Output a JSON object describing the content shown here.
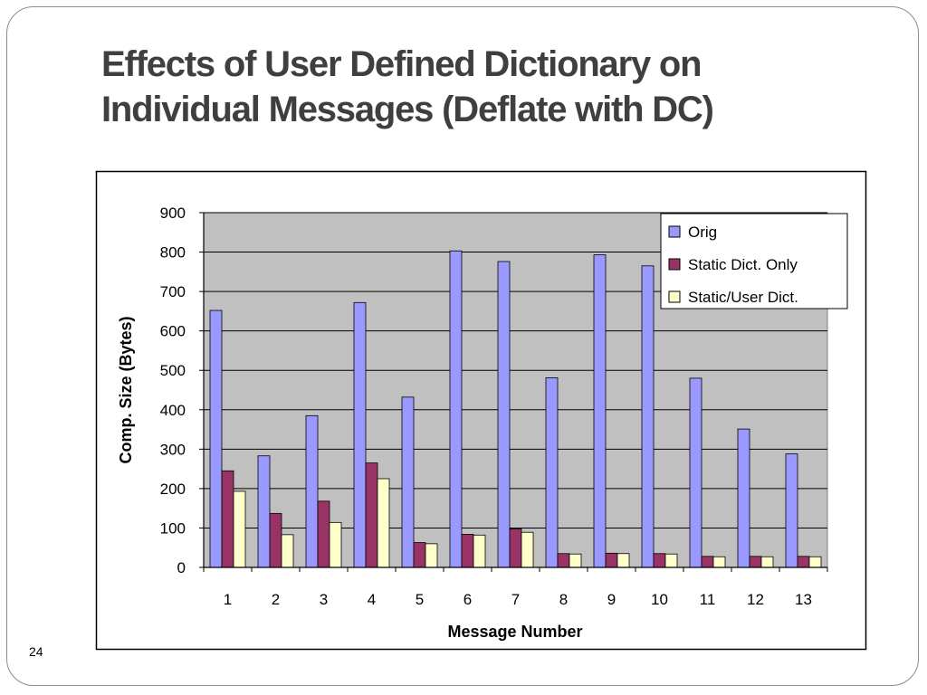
{
  "slide": {
    "title_line1": "Effects of User Defined Dictionary on",
    "title_line2": "Individual Messages (Deflate with DC)",
    "number": "24"
  },
  "chart_data": {
    "type": "bar",
    "categories": [
      "1",
      "2",
      "3",
      "4",
      "5",
      "6",
      "7",
      "8",
      "9",
      "10",
      "11",
      "12",
      "13"
    ],
    "series": [
      {
        "name": "Orig",
        "color": "#9999ff",
        "values": [
          652,
          283,
          385,
          672,
          432,
          803,
          776,
          481,
          793,
          765,
          480,
          351,
          288
        ]
      },
      {
        "name": "Static Dict. Only",
        "color": "#993366",
        "values": [
          245,
          137,
          168,
          265,
          63,
          84,
          98,
          35,
          36,
          35,
          28,
          28,
          28
        ]
      },
      {
        "name": "Static/User Dict.",
        "color": "#ffffcc",
        "values": [
          193,
          83,
          114,
          225,
          60,
          82,
          89,
          34,
          35,
          34,
          27,
          27,
          27
        ]
      }
    ],
    "xlabel": "Message Number",
    "ylabel": "Comp. Size (Bytes)",
    "ylim": [
      0,
      900
    ],
    "yticks": [
      "0",
      "100",
      "200",
      "300",
      "400",
      "500",
      "600",
      "700",
      "800",
      "900"
    ],
    "grid": true,
    "plot_background": "#c0c0c0",
    "legend_position": "top-right"
  }
}
